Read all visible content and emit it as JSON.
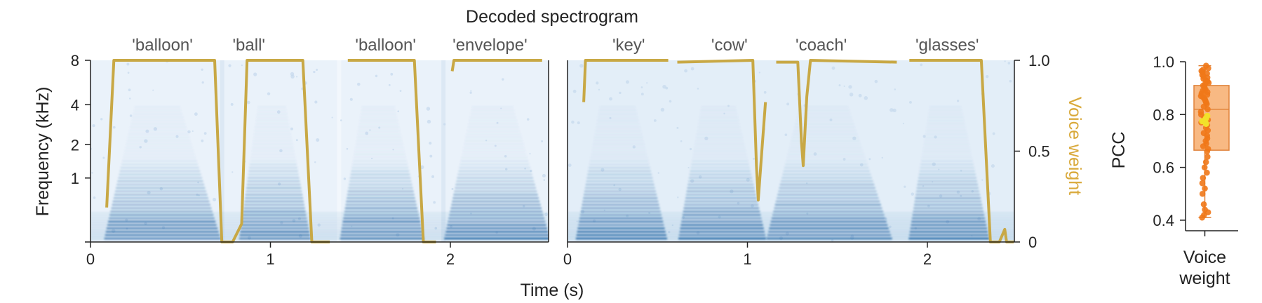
{
  "colors": {
    "voice": "#C8A845",
    "voice_axis": "#D9A93A",
    "spec_dark": "#1A5C9E",
    "spec_light": "#EAF2FA",
    "box_fill": "#F5A15A",
    "box_edge": "#E0823A",
    "point": "#F07818",
    "median_point": "#F2E12A",
    "axis": "#222222"
  },
  "chart_data": [
    {
      "type": "heatmap",
      "title": "Decoded spectrogram",
      "xlabel": "Time (s)",
      "ylabel": "Frequency (kHz)",
      "y2label": "Voice weight",
      "yscale": "mel",
      "y_ticks": [
        0,
        1,
        2,
        4,
        8
      ],
      "y_tick_labels": [
        "",
        "1",
        "2",
        "4",
        "8"
      ],
      "y2_ticks": [
        0,
        0.5,
        1.0
      ],
      "y2_tick_labels": [
        "0",
        "0.5",
        "1.0"
      ],
      "y2lim": [
        0,
        1
      ],
      "panels": [
        {
          "name": "left",
          "xlim": [
            0,
            2.55
          ],
          "x_ticks": [
            0,
            1,
            2
          ],
          "x_tick_labels": [
            "0",
            "1",
            "2"
          ],
          "segment_boundaries": [
            0.72,
            1.37,
            1.95
          ],
          "words": [
            {
              "label": "'balloon'",
              "t": 0.4,
              "on": 0.08,
              "off": 0.72
            },
            {
              "label": "'ball'",
              "t": 0.88,
              "on": 0.83,
              "off": 1.22
            },
            {
              "label": "'balloon'",
              "t": 1.64,
              "on": 1.39,
              "off": 1.85
            },
            {
              "label": "'envelope'",
              "t": 2.22,
              "on": 1.97,
              "off": 2.55
            }
          ],
          "voice_weight": [
            [
              0.09,
              0.19
            ],
            [
              0.13,
              1.0
            ],
            [
              0.69,
              1.0
            ],
            [
              0.73,
              0.0
            ],
            [
              0.79,
              0.0
            ],
            [
              0.84,
              0.1
            ],
            [
              0.87,
              1.0
            ],
            [
              1.18,
              1.0
            ],
            [
              1.23,
              0.0
            ],
            [
              1.33,
              0.0
            ],
            [
              null,
              null
            ],
            [
              1.43,
              1.0
            ],
            [
              1.8,
              1.0
            ],
            [
              1.85,
              0.0
            ],
            [
              1.92,
              0.0
            ],
            [
              null,
              null
            ],
            [
              2.01,
              0.94
            ],
            [
              2.02,
              1.0
            ],
            [
              2.51,
              1.0
            ]
          ]
        },
        {
          "name": "right",
          "xlim": [
            0,
            2.48
          ],
          "x_ticks": [
            0,
            1,
            2
          ],
          "x_tick_labels": [
            "0",
            "1",
            "2"
          ],
          "words": [
            {
              "label": "'key'",
              "t": 0.34,
              "on": 0.05,
              "off": 0.55
            },
            {
              "label": "'cow'",
              "t": 0.9,
              "on": 0.62,
              "off": 1.1
            },
            {
              "label": "'coach'",
              "t": 1.41,
              "on": 1.11,
              "off": 1.8
            },
            {
              "label": "'glasses'",
              "t": 2.11,
              "on": 1.9,
              "off": 2.34
            }
          ],
          "voice_weight": [
            [
              0.09,
              0.77
            ],
            [
              0.1,
              1.0
            ],
            [
              0.56,
              1.0
            ],
            [
              null,
              null
            ],
            [
              0.61,
              0.99
            ],
            [
              1.03,
              1.0
            ],
            [
              1.05,
              0.42
            ],
            [
              1.06,
              0.23
            ],
            [
              1.08,
              0.5
            ],
            [
              1.1,
              0.77
            ],
            [
              null,
              null
            ],
            [
              1.16,
              0.99
            ],
            [
              1.28,
              0.99
            ],
            [
              1.3,
              0.55
            ],
            [
              1.31,
              0.42
            ],
            [
              1.33,
              0.8
            ],
            [
              1.35,
              1.0
            ],
            [
              1.83,
              0.99
            ],
            [
              null,
              null
            ],
            [
              1.9,
              1.0
            ],
            [
              2.3,
              1.0
            ],
            [
              2.35,
              0.0
            ],
            [
              2.4,
              0.0
            ],
            [
              2.43,
              0.07
            ],
            [
              2.44,
              0.0
            ],
            [
              2.48,
              0.0
            ]
          ]
        }
      ]
    },
    {
      "type": "box",
      "title": "",
      "xlabel": "",
      "ylabel": "PCC",
      "category": "Voice weight",
      "ylim": [
        0.36,
        1.0
      ],
      "y_ticks": [
        0.4,
        0.6,
        0.8,
        1.0
      ],
      "y_tick_labels": [
        "0.4",
        "0.6",
        "0.8",
        "1.0"
      ],
      "box": {
        "min": 0.41,
        "q1": 0.665,
        "median": 0.82,
        "q3": 0.91,
        "max": 0.985
      },
      "highlight_points": [
        0.785,
        0.765,
        0.795,
        0.775
      ],
      "points": [
        0.985,
        0.975,
        0.97,
        0.965,
        0.96,
        0.955,
        0.95,
        0.945,
        0.94,
        0.935,
        0.93,
        0.925,
        0.92,
        0.915,
        0.91,
        0.905,
        0.9,
        0.895,
        0.89,
        0.885,
        0.88,
        0.875,
        0.87,
        0.865,
        0.86,
        0.855,
        0.85,
        0.845,
        0.84,
        0.83,
        0.82,
        0.81,
        0.8,
        0.79,
        0.78,
        0.77,
        0.76,
        0.75,
        0.74,
        0.73,
        0.72,
        0.71,
        0.7,
        0.69,
        0.68,
        0.67,
        0.66,
        0.64,
        0.62,
        0.6,
        0.58,
        0.56,
        0.54,
        0.52,
        0.5,
        0.46,
        0.44,
        0.43,
        0.42,
        0.41
      ]
    }
  ]
}
